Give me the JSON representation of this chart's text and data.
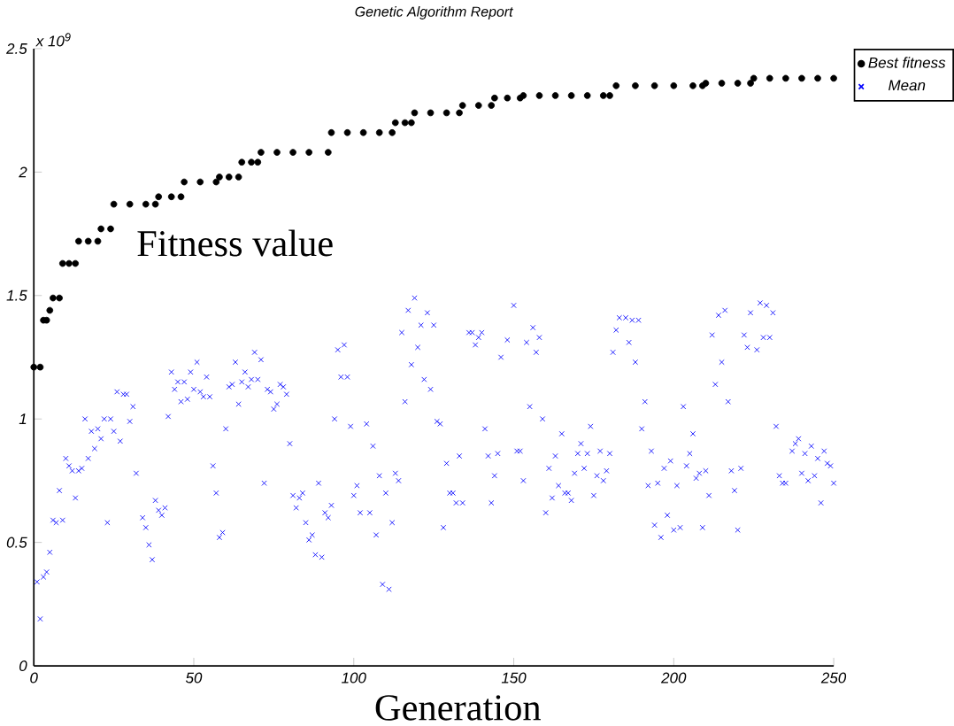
{
  "chart_data": {
    "type": "scatter",
    "title": "Genetic Algorithm Report",
    "xlabel": "Generation",
    "ylabel": "Fitness value",
    "annotations": [
      "x 10$^{9}$"
    ],
    "xlim": [
      0,
      250
    ],
    "ylim": [
      0,
      2.5
    ],
    "xticks": [
      0,
      50,
      100,
      150,
      200,
      250
    ],
    "yticks": [
      0,
      0.5,
      1,
      1.5,
      2,
      2.5
    ],
    "grid": false,
    "legend": "top right",
    "series": [
      {
        "name": "Best fitness",
        "color": "#000000",
        "marker": "circle",
        "x": [
          0,
          2,
          3,
          4,
          5,
          6,
          8,
          9,
          11,
          13,
          14,
          17,
          20,
          21,
          24,
          25,
          30,
          35,
          38,
          39,
          43,
          46,
          47,
          52,
          57,
          58,
          61,
          64,
          65,
          68,
          70,
          71,
          76,
          81,
          86,
          92,
          93,
          98,
          103,
          108,
          112,
          113,
          116,
          118,
          119,
          124,
          129,
          133,
          134,
          139,
          143,
          144,
          148,
          152,
          153,
          158,
          163,
          168,
          173,
          178,
          180,
          182,
          188,
          194,
          200,
          206,
          209,
          210,
          215,
          220,
          224,
          225,
          230,
          235,
          240,
          245,
          250
        ],
        "values": [
          1.21,
          1.21,
          1.4,
          1.4,
          1.44,
          1.49,
          1.49,
          1.63,
          1.63,
          1.63,
          1.72,
          1.72,
          1.72,
          1.77,
          1.77,
          1.87,
          1.87,
          1.87,
          1.87,
          1.9,
          1.9,
          1.9,
          1.96,
          1.96,
          1.96,
          1.98,
          1.98,
          1.98,
          2.04,
          2.04,
          2.04,
          2.08,
          2.08,
          2.08,
          2.08,
          2.08,
          2.16,
          2.16,
          2.16,
          2.16,
          2.16,
          2.2,
          2.2,
          2.2,
          2.24,
          2.24,
          2.24,
          2.24,
          2.27,
          2.27,
          2.27,
          2.3,
          2.3,
          2.3,
          2.31,
          2.31,
          2.31,
          2.31,
          2.31,
          2.31,
          2.31,
          2.35,
          2.35,
          2.35,
          2.35,
          2.35,
          2.35,
          2.36,
          2.36,
          2.36,
          2.36,
          2.38,
          2.38,
          2.38,
          2.38,
          2.38,
          2.38
        ]
      },
      {
        "name": "Mean",
        "color": "#0000ff",
        "marker": "cross",
        "x": [
          1,
          2,
          3,
          4,
          5,
          6,
          7,
          8,
          9,
          10,
          11,
          12,
          13,
          14,
          15,
          16,
          17,
          18,
          19,
          20,
          21,
          22,
          23,
          24,
          25,
          26,
          27,
          28,
          29,
          30,
          31,
          32,
          34,
          35,
          36,
          37,
          38,
          39,
          40,
          41,
          42,
          43,
          44,
          45,
          46,
          47,
          48,
          49,
          50,
          51,
          52,
          53,
          54,
          55,
          56,
          57,
          58,
          59,
          60,
          61,
          62,
          63,
          64,
          65,
          66,
          67,
          68,
          69,
          70,
          71,
          72,
          73,
          74,
          75,
          76,
          77,
          78,
          79,
          80,
          81,
          82,
          83,
          84,
          85,
          86,
          87,
          88,
          89,
          90,
          91,
          92,
          93,
          94,
          95,
          96,
          97,
          98,
          99,
          100,
          101,
          102,
          104,
          105,
          106,
          107,
          108,
          109,
          110,
          111,
          112,
          113,
          114,
          115,
          116,
          117,
          118,
          119,
          120,
          121,
          122,
          123,
          124,
          125,
          126,
          127,
          128,
          129,
          130,
          131,
          132,
          133,
          134,
          136,
          137,
          138,
          139,
          140,
          141,
          142,
          143,
          144,
          145,
          146,
          148,
          150,
          151,
          152,
          153,
          154,
          155,
          156,
          157,
          158,
          159,
          160,
          161,
          162,
          163,
          164,
          165,
          166,
          167,
          168,
          169,
          170,
          171,
          172,
          173,
          174,
          175,
          176,
          177,
          178,
          179,
          180,
          181,
          182,
          183,
          185,
          186,
          187,
          188,
          189,
          190,
          191,
          192,
          193,
          194,
          195,
          196,
          197,
          198,
          199,
          200,
          201,
          202,
          203,
          204,
          205,
          206,
          207,
          208,
          209,
          210,
          211,
          212,
          213,
          214,
          215,
          216,
          217,
          218,
          219,
          220,
          221,
          222,
          223,
          224,
          226,
          227,
          228,
          229,
          230,
          231,
          232,
          233,
          234,
          235,
          237,
          238,
          239,
          240,
          241,
          242,
          243,
          244,
          245,
          246,
          247,
          248,
          249,
          250
        ],
        "values": [
          0.34,
          0.19,
          0.36,
          0.38,
          0.46,
          0.59,
          0.58,
          0.71,
          0.59,
          0.84,
          0.81,
          0.79,
          0.68,
          0.79,
          0.8,
          1.0,
          0.84,
          0.95,
          0.88,
          0.96,
          0.92,
          1.0,
          0.58,
          1.0,
          0.95,
          1.11,
          0.91,
          1.1,
          1.1,
          0.99,
          1.05,
          0.78,
          0.6,
          0.56,
          0.49,
          0.43,
          0.67,
          0.63,
          0.61,
          0.64,
          1.01,
          1.19,
          1.12,
          1.15,
          1.07,
          1.15,
          1.08,
          1.19,
          1.12,
          1.23,
          1.11,
          1.09,
          1.17,
          1.09,
          0.81,
          0.7,
          0.52,
          0.54,
          0.96,
          1.13,
          1.14,
          1.23,
          1.06,
          1.15,
          1.19,
          1.13,
          1.16,
          1.27,
          1.16,
          1.24,
          0.74,
          1.12,
          1.11,
          1.04,
          1.06,
          1.14,
          1.13,
          1.1,
          0.9,
          0.69,
          0.64,
          0.68,
          0.7,
          0.58,
          0.51,
          0.53,
          0.45,
          0.74,
          0.44,
          0.62,
          0.6,
          0.65,
          1.0,
          1.28,
          1.17,
          1.3,
          1.17,
          0.97,
          0.69,
          0.73,
          0.62,
          0.98,
          0.62,
          0.89,
          0.53,
          0.77,
          0.33,
          0.7,
          0.31,
          0.58,
          0.78,
          0.75,
          1.35,
          1.07,
          1.44,
          1.22,
          1.49,
          1.29,
          1.38,
          1.16,
          1.43,
          1.12,
          1.38,
          0.99,
          0.98,
          0.56,
          0.82,
          0.7,
          0.7,
          0.66,
          0.85,
          0.66,
          1.35,
          1.35,
          1.3,
          1.33,
          1.35,
          0.96,
          0.85,
          0.66,
          0.77,
          0.86,
          1.25,
          1.32,
          1.46,
          0.87,
          0.87,
          0.75,
          1.31,
          1.05,
          1.37,
          1.27,
          1.33,
          1.0,
          0.62,
          0.8,
          0.68,
          0.85,
          0.73,
          0.94,
          0.7,
          0.7,
          0.67,
          0.78,
          0.86,
          0.9,
          0.8,
          0.86,
          0.97,
          0.69,
          0.77,
          0.87,
          0.75,
          0.79,
          0.86,
          1.27,
          1.36,
          1.41,
          1.41,
          1.31,
          1.4,
          1.23,
          1.4,
          0.96,
          1.07,
          0.73,
          0.87,
          0.57,
          0.74,
          0.52,
          0.8,
          0.61,
          0.83,
          0.55,
          0.73,
          0.56,
          1.05,
          0.81,
          0.86,
          0.94,
          0.76,
          0.78,
          0.56,
          0.79,
          0.69,
          1.34,
          1.14,
          1.42,
          1.23,
          1.44,
          1.07,
          0.79,
          0.71,
          0.55,
          0.8,
          1.34,
          1.29,
          1.43,
          1.28,
          1.47,
          1.33,
          1.46,
          1.33,
          1.43,
          0.97,
          0.77,
          0.74,
          0.74,
          0.87,
          0.9,
          0.92,
          0.78,
          0.86,
          0.75,
          0.89,
          0.77,
          0.84,
          0.66,
          0.87,
          0.82,
          0.81,
          0.74
        ]
      }
    ]
  }
}
